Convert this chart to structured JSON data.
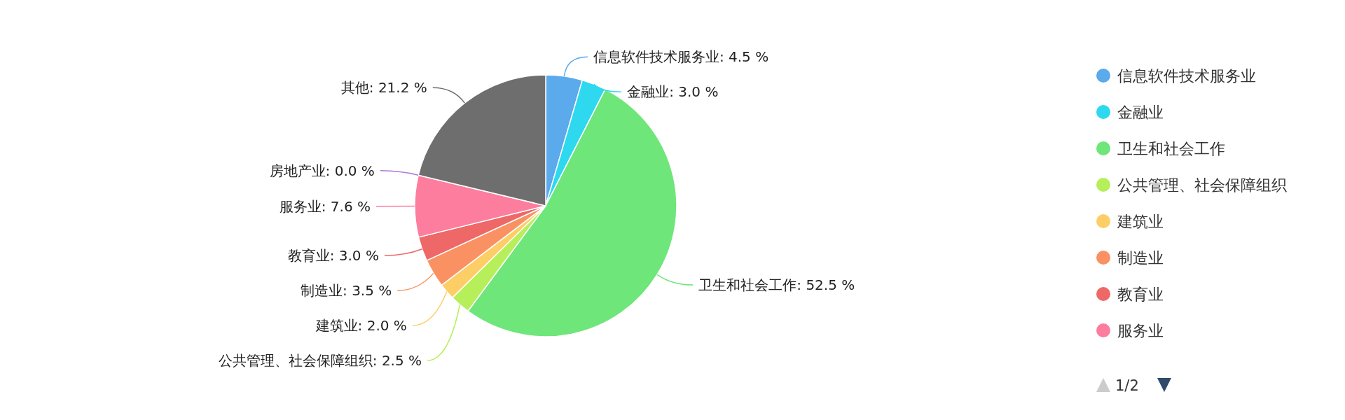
{
  "chart_data": {
    "type": "pie",
    "categories": [
      "信息软件技术服务业",
      "金融业",
      "卫生和社会工作",
      "公共管理、社会保障组织",
      "建筑业",
      "制造业",
      "教育业",
      "服务业",
      "房地产业",
      "其他"
    ],
    "values": [
      4.5,
      3.0,
      52.5,
      2.5,
      2.0,
      3.5,
      3.0,
      7.6,
      0.0,
      21.2
    ],
    "value_labels": [
      ": 4.5 %",
      ": 3.0 %",
      ": 52.5 %",
      ": 2.5 %",
      ": 2.0 %",
      ": 3.5 %",
      ": 3.0 %",
      ": 7.6 %",
      ": 0.0 %",
      ": 21.2 %"
    ],
    "colors": [
      "#5aaaec",
      "#2ed8ef",
      "#6ee67a",
      "#b6ef5a",
      "#fdce66",
      "#fa9162",
      "#ee6868",
      "#fd7d9e",
      "#b07ad9",
      "#6e6e6e"
    ],
    "legend": "right",
    "annotations": [
      "1/2"
    ]
  }
}
